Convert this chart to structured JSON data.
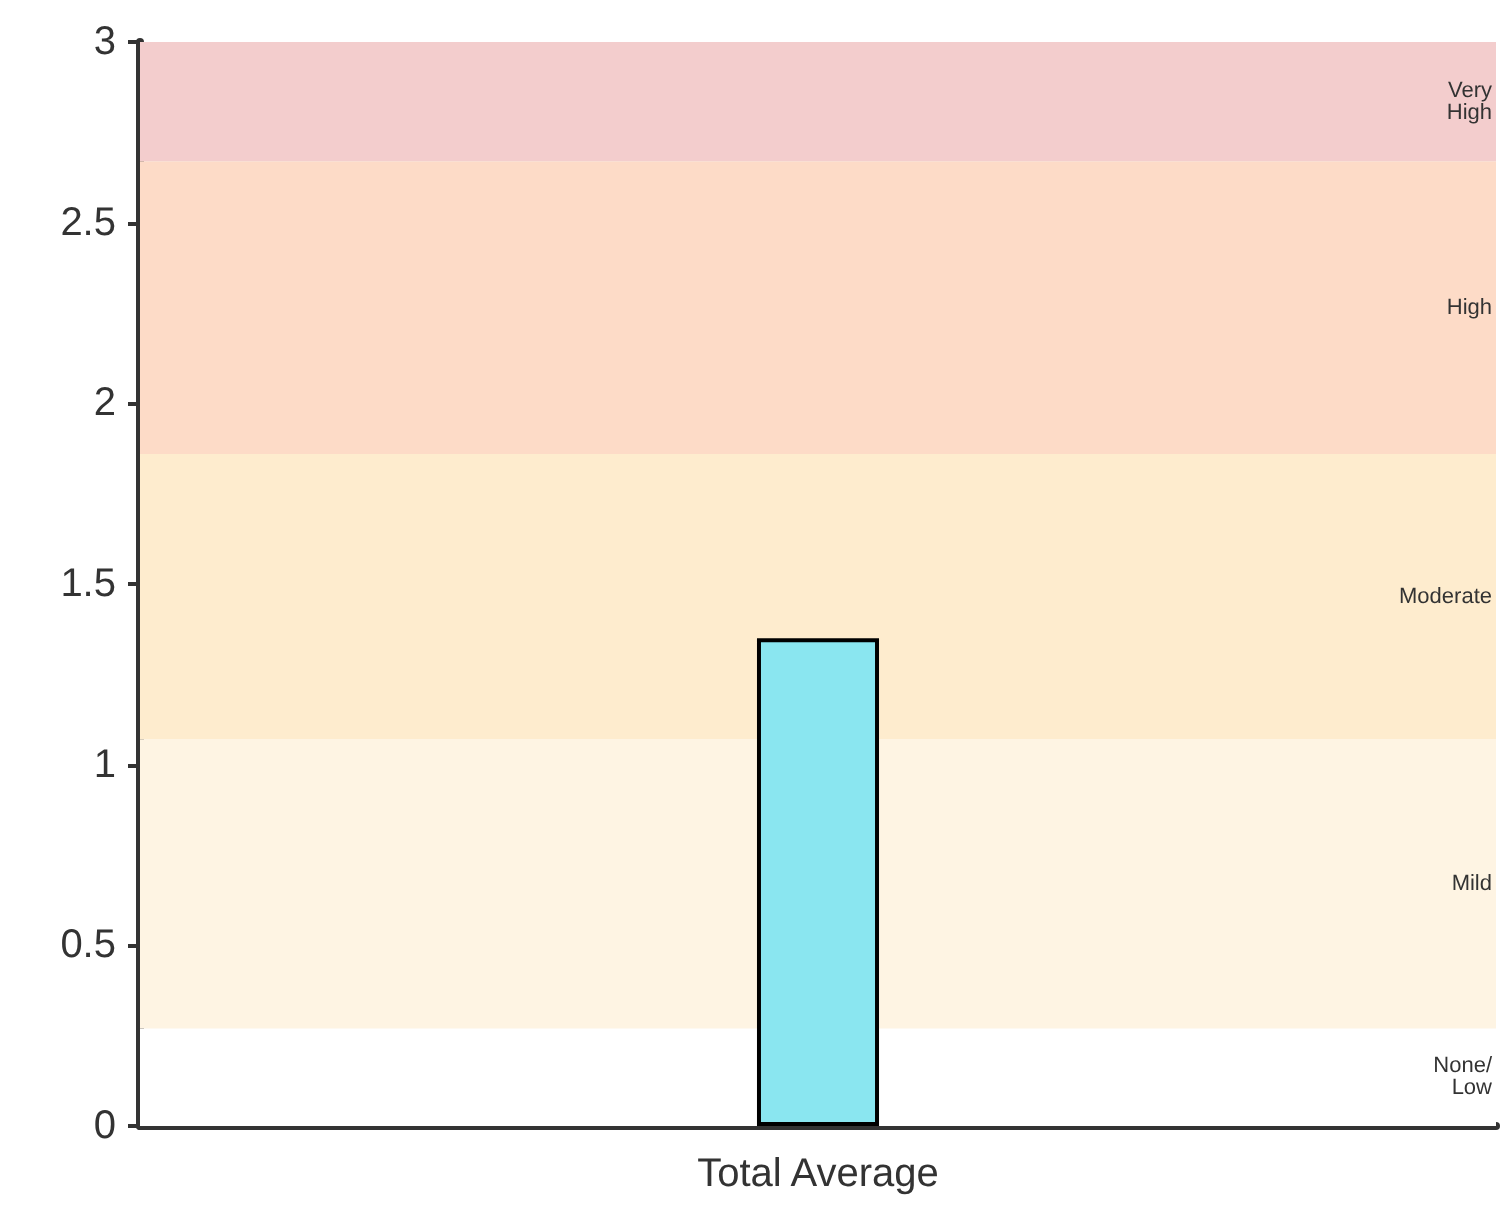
{
  "chart_data": {
    "type": "bar",
    "categories": [
      "Total Average"
    ],
    "values": [
      1.35
    ],
    "color": "#8ae6f0",
    "ylim": [
      0,
      3
    ],
    "yticks": [
      0,
      0.5,
      1,
      1.5,
      2,
      2.5,
      3
    ],
    "bands": [
      {
        "axis": "y",
        "from": 0,
        "to": 0.27,
        "label": "None/\nLow",
        "color": "#ffffff"
      },
      {
        "axis": "y",
        "from": 0.27,
        "to": 1.07,
        "label": "Mild",
        "color": "#fef4e3"
      },
      {
        "axis": "y",
        "from": 1.07,
        "to": 1.86,
        "label": "Moderate",
        "color": "#feecce"
      },
      {
        "axis": "y",
        "from": 1.86,
        "to": 2.67,
        "label": "High",
        "color": "#fddbc7"
      },
      {
        "axis": "y",
        "from": 2.67,
        "to": 3,
        "label": "Very\nHigh",
        "color": "#f3cdcd"
      }
    ]
  }
}
